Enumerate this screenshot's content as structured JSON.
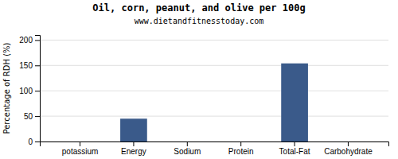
{
  "chart_data": {
    "type": "bar",
    "title": "Oil, corn, peanut, and olive per 100g",
    "subtitle": "www.dietandfitnesstoday.com",
    "ylabel": "Percentage of RDH (%)",
    "categories": [
      "potassium",
      "Energy",
      "Sodium",
      "Protein",
      "Total-Fat",
      "Carbohydrate"
    ],
    "values": [
      0,
      45,
      0,
      0,
      154,
      0
    ],
    "color": "#3a5a8a",
    "ylim": [
      0,
      210
    ],
    "yticks": [
      0,
      50,
      100,
      150,
      200
    ],
    "grid": true
  }
}
